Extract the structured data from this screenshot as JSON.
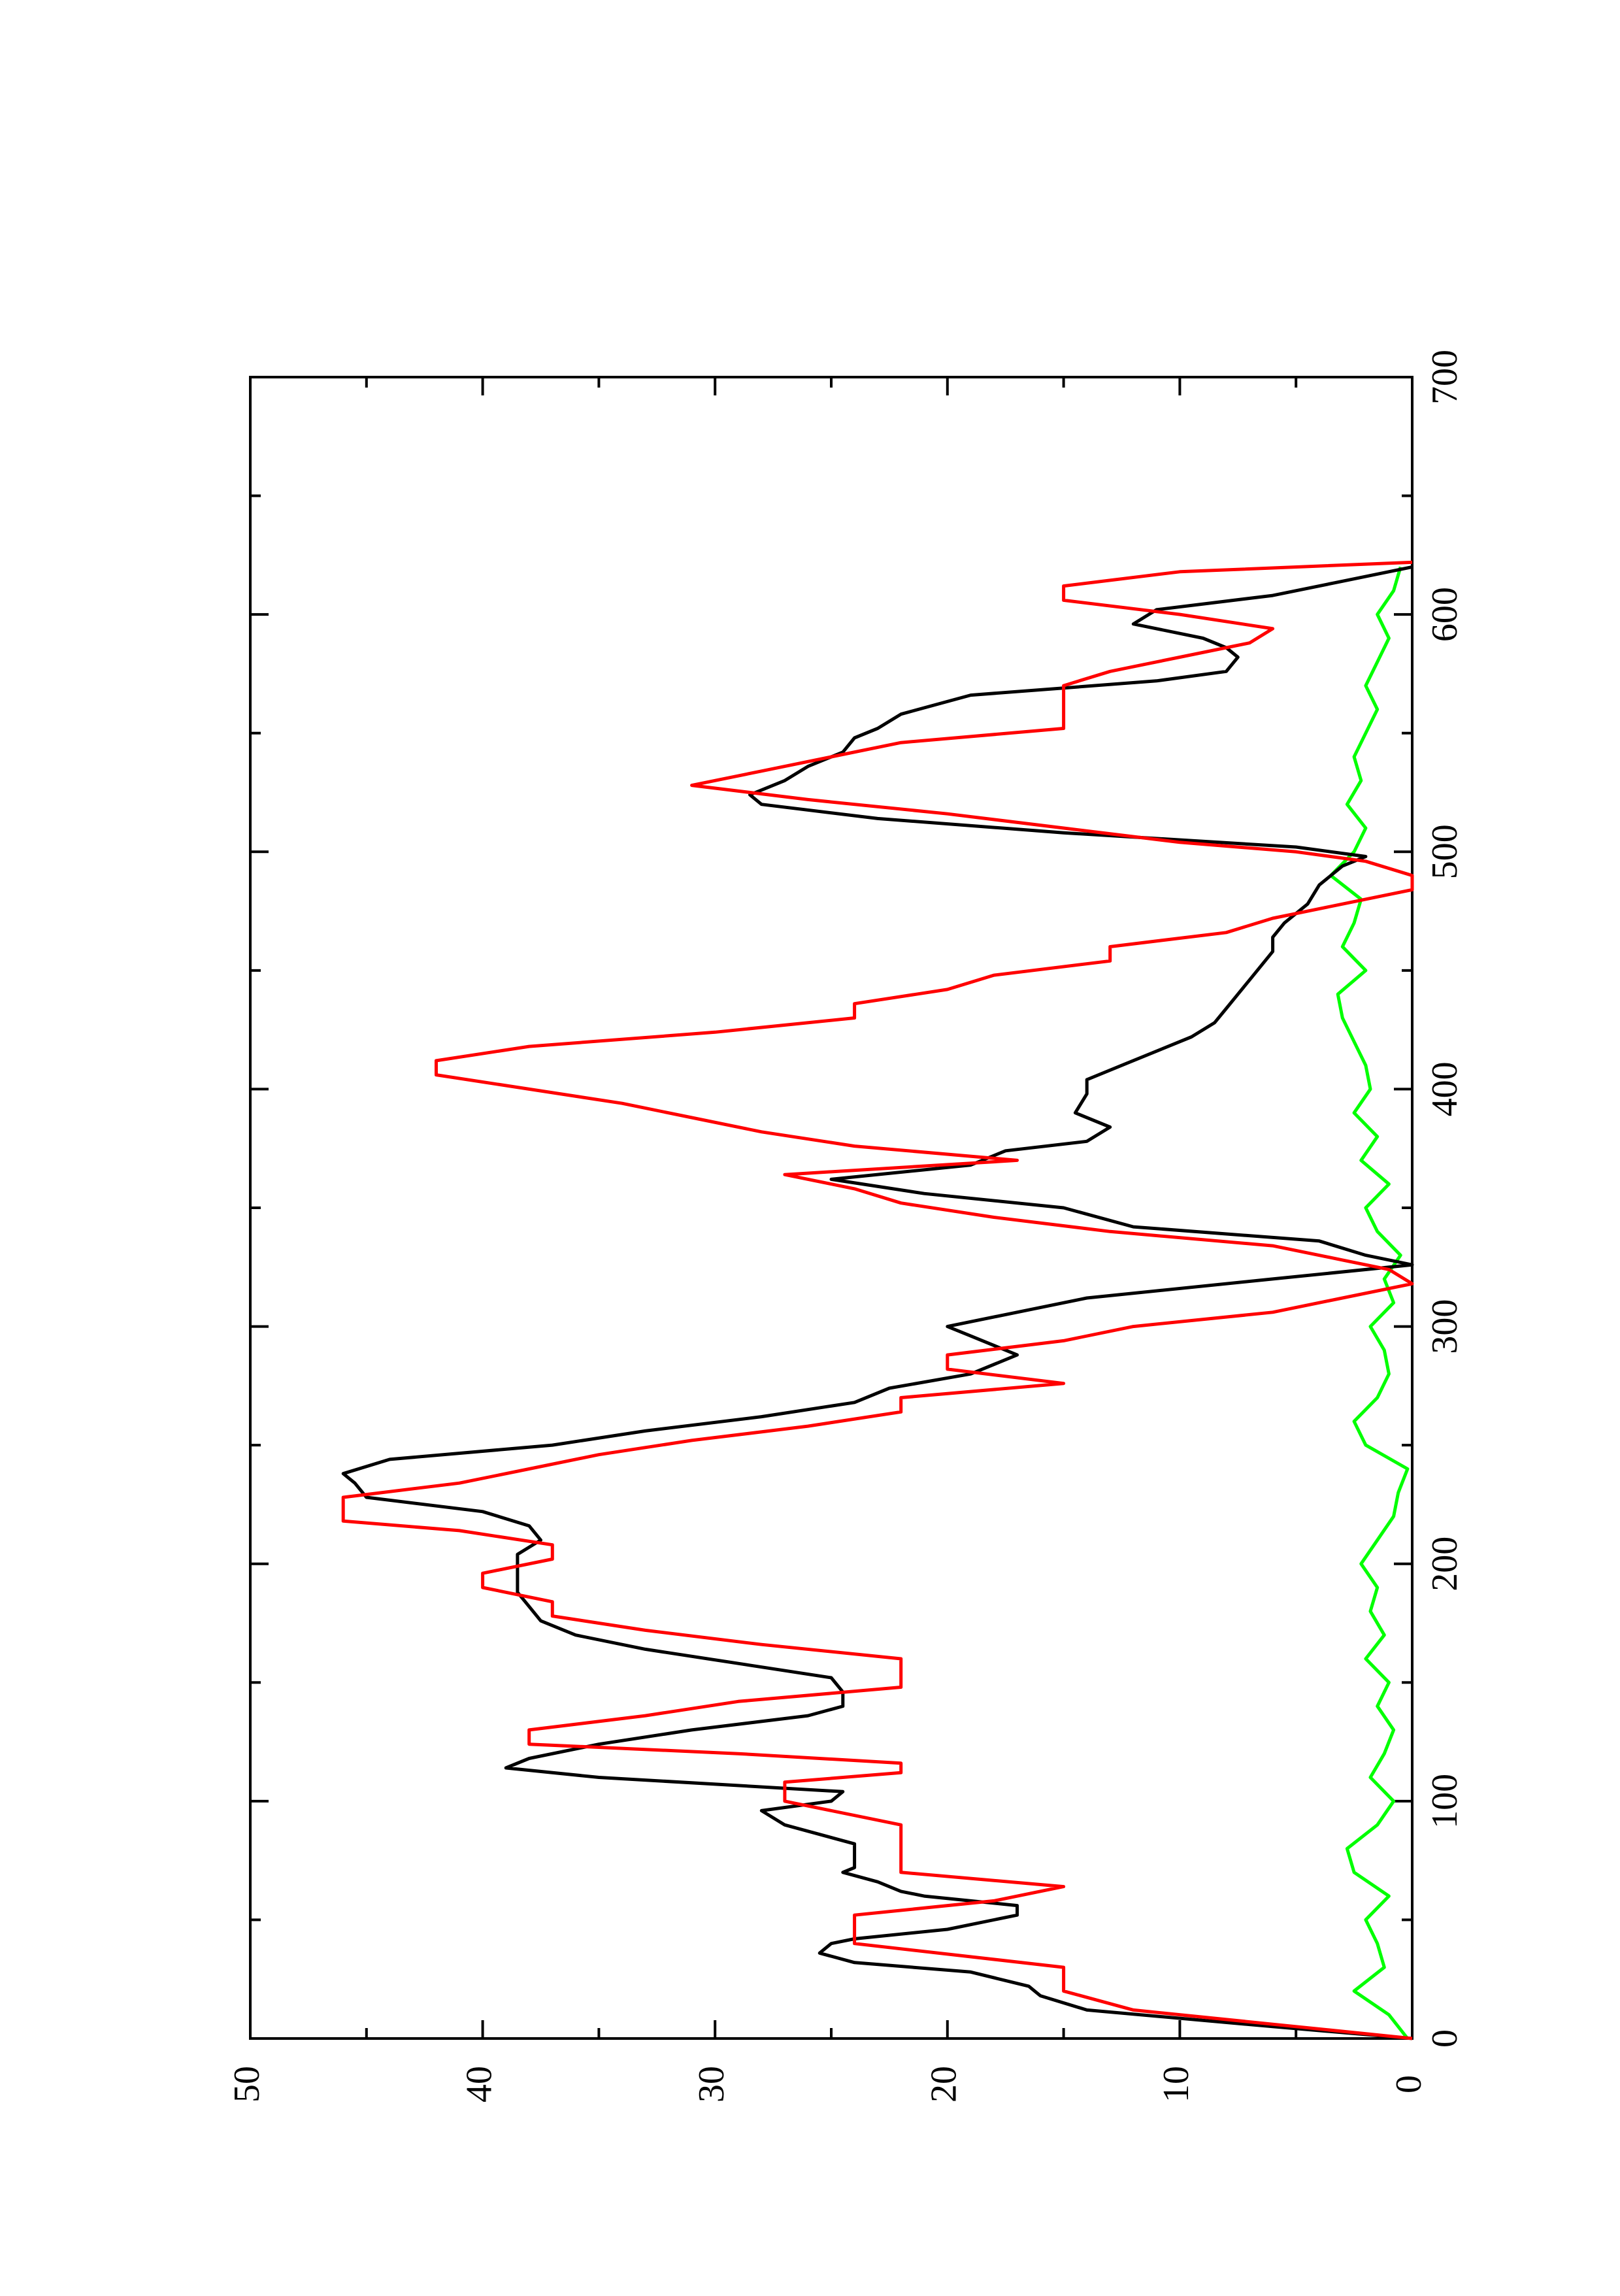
{
  "chart_data": {
    "type": "line",
    "title": "",
    "xlabel": "",
    "ylabel": "",
    "orientation": "rotated-90-ccw",
    "xlim": [
      0,
      700
    ],
    "ylim": [
      0,
      50
    ],
    "x_ticks": [
      0,
      100,
      200,
      300,
      400,
      500,
      600,
      700
    ],
    "y_ticks": [
      0,
      10,
      20,
      30,
      40,
      50
    ],
    "x_tick_labels": [
      "0",
      "100",
      "200",
      "300",
      "400",
      "500",
      "600",
      "700"
    ],
    "y_tick_labels": [
      "0",
      "10",
      "20",
      "30",
      "40",
      "50"
    ],
    "grid": false,
    "legend": "none",
    "series": [
      {
        "color": "#000000",
        "x": [
          0,
          5,
          12,
          18,
          22,
          28,
          32,
          36,
          40,
          42,
          46,
          52,
          56,
          60,
          62,
          66,
          70,
          72,
          76,
          82,
          90,
          96,
          100,
          104,
          110,
          114,
          118,
          124,
          130,
          136,
          140,
          146,
          152,
          158,
          164,
          170,
          176,
          182,
          188,
          196,
          204,
          210,
          216,
          222,
          228,
          234,
          238,
          244,
          250,
          256,
          262,
          268,
          274,
          280,
          288,
          296,
          300,
          306,
          312,
          320,
          326,
          330,
          336,
          342,
          350,
          356,
          362,
          368,
          374,
          378,
          384,
          390,
          398,
          404,
          410,
          416,
          422,
          428,
          434,
          440,
          446,
          452,
          458,
          464,
          470,
          478,
          486,
          494,
          498,
          502,
          508,
          514,
          520,
          524,
          530,
          536,
          542,
          548,
          552,
          558,
          566,
          572,
          576,
          582,
          586,
          590,
          596,
          602,
          608,
          614,
          620
        ],
        "y": [
          0,
          6,
          14,
          16,
          16.5,
          19,
          24,
          25.5,
          25,
          24,
          20,
          17,
          17,
          21,
          22,
          23,
          24.5,
          24,
          24,
          24,
          27,
          28,
          25,
          24.5,
          35,
          39,
          38,
          35,
          31,
          26,
          24.5,
          24.5,
          25,
          29,
          33,
          36,
          37.5,
          38,
          38.5,
          38.5,
          38.5,
          37.5,
          38,
          40,
          45,
          45.5,
          46,
          44,
          37,
          33,
          28,
          24,
          22.5,
          19,
          17,
          19,
          20,
          17,
          14,
          6,
          0,
          2,
          4,
          12,
          15,
          21,
          25,
          19,
          17.5,
          14,
          13,
          14.5,
          14,
          14,
          12.5,
          11,
          9.5,
          8.5,
          8,
          7.5,
          7,
          6.5,
          6,
          6,
          5.5,
          4.5,
          4,
          3,
          2,
          5,
          15,
          23,
          28,
          28.5,
          27,
          26,
          24.5,
          24,
          23,
          22,
          19,
          11,
          8,
          7.5,
          8,
          9,
          12,
          11,
          6,
          3,
          0
        ]
      },
      {
        "color": "#ff0000",
        "x": [
          0,
          6,
          12,
          20,
          30,
          40,
          46,
          52,
          58,
          64,
          70,
          76,
          82,
          90,
          100,
          108,
          112,
          116,
          120,
          124,
          130,
          136,
          142,
          148,
          154,
          160,
          166,
          172,
          178,
          184,
          190,
          196,
          202,
          208,
          214,
          218,
          222,
          228,
          234,
          240,
          246,
          252,
          258,
          264,
          270,
          276,
          282,
          288,
          294,
          300,
          306,
          312,
          318,
          324,
          328,
          334,
          340,
          346,
          352,
          358,
          364,
          370,
          376,
          382,
          388,
          394,
          400,
          406,
          412,
          418,
          424,
          430,
          436,
          442,
          448,
          454,
          460,
          466,
          472,
          478,
          484,
          490,
          496,
          500,
          504,
          510,
          516,
          522,
          528,
          534,
          540,
          546,
          552,
          558,
          564,
          570,
          576,
          582,
          588,
          594,
          600,
          606,
          612,
          618,
          622
        ],
        "y": [
          0,
          6,
          12,
          15,
          15,
          24,
          24,
          24,
          18,
          15,
          22,
          22,
          22,
          22,
          27,
          27,
          22,
          22,
          29,
          38,
          38,
          33,
          29,
          22,
          22,
          22,
          28,
          33,
          37,
          37,
          40,
          40,
          37,
          37,
          41,
          46,
          46,
          46,
          41,
          38,
          35,
          31,
          26,
          22,
          22,
          15,
          20,
          20,
          15,
          12,
          6,
          3,
          0,
          1,
          3,
          6,
          13,
          18,
          22,
          24,
          27,
          17,
          24,
          28,
          31,
          34,
          38,
          42,
          42,
          38,
          30,
          24,
          24,
          20,
          18,
          13,
          13,
          8,
          6,
          3,
          0,
          0,
          2,
          5,
          10,
          15,
          20,
          26,
          31,
          28,
          25,
          22,
          15,
          15,
          15,
          15,
          13,
          10,
          7,
          6,
          10,
          15,
          15,
          10,
          0
        ]
      },
      {
        "color": "#00ff00",
        "x": [
          0,
          10,
          20,
          30,
          40,
          50,
          60,
          70,
          80,
          90,
          100,
          110,
          120,
          130,
          140,
          150,
          160,
          170,
          180,
          190,
          200,
          210,
          220,
          230,
          240,
          250,
          260,
          270,
          280,
          290,
          300,
          310,
          320,
          330,
          340,
          350,
          360,
          370,
          380,
          390,
          400,
          410,
          420,
          430,
          440,
          450,
          460,
          470,
          480,
          490,
          500,
          510,
          520,
          530,
          540,
          550,
          560,
          570,
          580,
          590,
          600,
          610,
          620
        ],
        "y": [
          0.2,
          1.0,
          2.5,
          1.2,
          1.5,
          2.0,
          1.0,
          2.5,
          2.8,
          1.5,
          0.8,
          1.8,
          1.2,
          0.8,
          1.5,
          1.0,
          2.0,
          1.2,
          1.8,
          1.5,
          2.2,
          1.5,
          0.8,
          0.6,
          0.2,
          2.0,
          2.5,
          1.5,
          1.0,
          1.2,
          1.8,
          0.8,
          1.2,
          0.5,
          1.5,
          2.0,
          1.0,
          2.2,
          1.5,
          2.5,
          1.8,
          2.0,
          2.5,
          3.0,
          3.2,
          2.0,
          3.0,
          2.5,
          2.2,
          3.5,
          2.5,
          2.0,
          2.8,
          2.2,
          2.5,
          2.0,
          1.5,
          2.0,
          1.5,
          1.0,
          1.5,
          0.8,
          0.5
        ]
      }
    ]
  }
}
